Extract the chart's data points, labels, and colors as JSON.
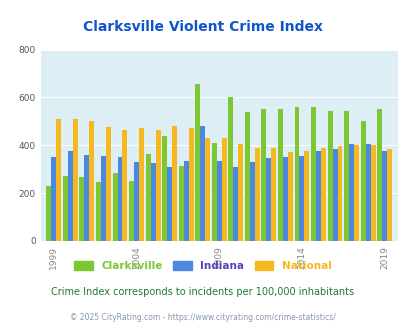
{
  "title": "Clarksville Violent Crime Index",
  "years": [
    1999,
    2000,
    2001,
    2002,
    2003,
    2004,
    2005,
    2006,
    2007,
    2008,
    2009,
    2010,
    2011,
    2012,
    2013,
    2014,
    2015,
    2016,
    2017,
    2018,
    2019
  ],
  "clarksville": [
    230,
    270,
    265,
    245,
    285,
    250,
    365,
    440,
    315,
    655,
    410,
    600,
    540,
    550,
    550,
    560,
    560,
    545,
    545,
    500,
    550
  ],
  "indiana": [
    350,
    375,
    360,
    355,
    350,
    330,
    325,
    310,
    335,
    480,
    335,
    310,
    330,
    345,
    350,
    355,
    375,
    385,
    405,
    405,
    375
  ],
  "national": [
    510,
    510,
    500,
    475,
    465,
    470,
    465,
    480,
    470,
    430,
    430,
    405,
    390,
    390,
    370,
    375,
    390,
    395,
    400,
    400,
    385
  ],
  "clarksville_color": "#7dc832",
  "indiana_color": "#4d88e0",
  "national_color": "#f5b820",
  "bg_color": "#deeef5",
  "title_color": "#1155cc",
  "subtitle": "Crime Index corresponds to incidents per 100,000 inhabitants",
  "footer": "© 2025 CityRating.com - https://www.cityrating.com/crime-statistics/",
  "subtitle_color": "#227733",
  "footer_color": "#8899aa",
  "legend_indiana_color": "#5544bb",
  "ylim": [
    0,
    800
  ],
  "yticks": [
    0,
    200,
    400,
    600,
    800
  ],
  "xtick_years": [
    1999,
    2004,
    2009,
    2014,
    2019
  ],
  "bar_width": 0.3,
  "figsize": [
    4.06,
    3.3
  ],
  "dpi": 100
}
